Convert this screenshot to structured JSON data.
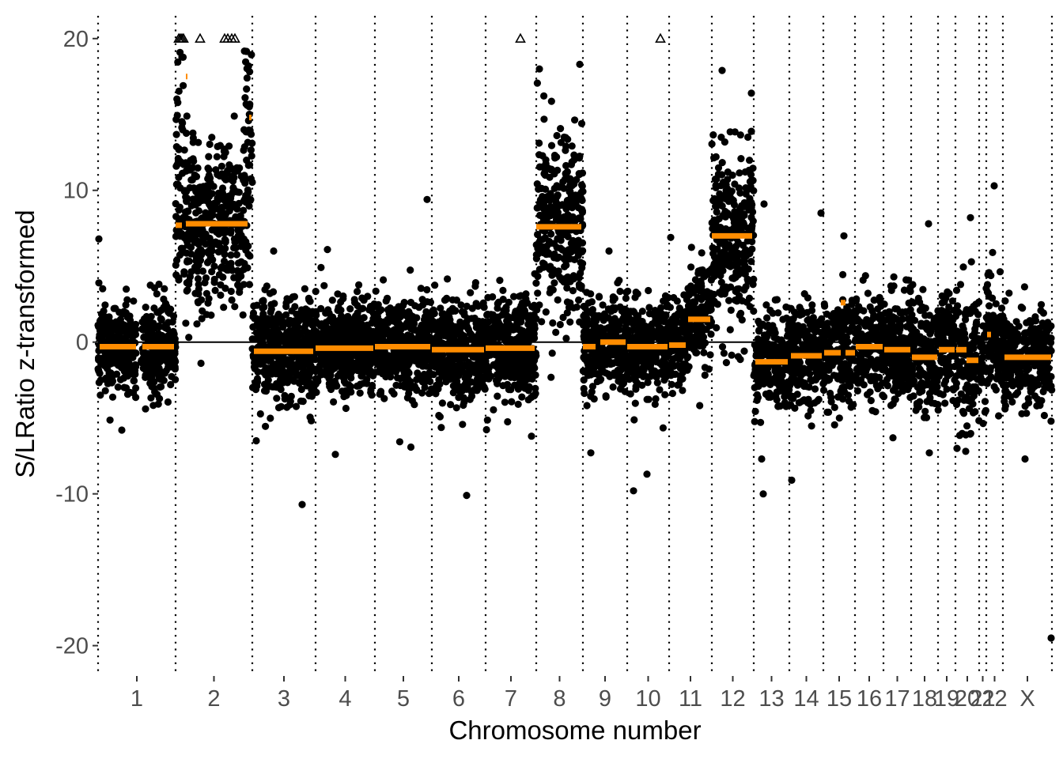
{
  "chart_data": {
    "type": "scatter",
    "title": "",
    "xlabel": "Chromosome number",
    "ylabel": "S/LRatio z-transformed",
    "ylim": [
      -22,
      21.5
    ],
    "yticks": [
      -20,
      -10,
      0,
      10,
      20
    ],
    "ytick_labels": [
      "-20",
      "-10",
      "0",
      "10",
      "20"
    ],
    "reference_line_y": 0,
    "clip_value": 20,
    "chromosomes": [
      {
        "label": "1",
        "start": 0,
        "end": 98
      },
      {
        "label": "2",
        "start": 98,
        "end": 195
      },
      {
        "label": "3",
        "start": 195,
        "end": 275
      },
      {
        "label": "4",
        "start": 275,
        "end": 350
      },
      {
        "label": "5",
        "start": 350,
        "end": 422
      },
      {
        "label": "6",
        "start": 422,
        "end": 490
      },
      {
        "label": "7",
        "start": 490,
        "end": 554
      },
      {
        "label": "8",
        "start": 554,
        "end": 613
      },
      {
        "label": "9",
        "start": 613,
        "end": 669
      },
      {
        "label": "10",
        "start": 669,
        "end": 722
      },
      {
        "label": "11",
        "start": 722,
        "end": 776
      },
      {
        "label": "12",
        "start": 776,
        "end": 829
      },
      {
        "label": "13",
        "start": 829,
        "end": 874
      },
      {
        "label": "14",
        "start": 874,
        "end": 917
      },
      {
        "label": "15",
        "start": 917,
        "end": 957
      },
      {
        "label": "16",
        "start": 957,
        "end": 993
      },
      {
        "label": "17",
        "start": 993,
        "end": 1028
      },
      {
        "label": "18",
        "start": 1028,
        "end": 1062
      },
      {
        "label": "19",
        "start": 1062,
        "end": 1084
      },
      {
        "label": "20",
        "start": 1084,
        "end": 1114
      },
      {
        "label": "21",
        "start": 1114,
        "end": 1123
      },
      {
        "label": "22",
        "start": 1123,
        "end": 1144
      },
      {
        "label": "X",
        "start": 1144,
        "end": 1206
      }
    ],
    "segments": [
      {
        "x0": 2,
        "x1": 48,
        "y": -0.3
      },
      {
        "x0": 56,
        "x1": 96,
        "y": -0.3
      },
      {
        "x0": 98,
        "x1": 106,
        "y": 7.7
      },
      {
        "x0": 111,
        "x1": 113,
        "y": 17.5
      },
      {
        "x0": 111,
        "x1": 189,
        "y": 7.8
      },
      {
        "x0": 191,
        "x1": 194,
        "y": 14.8
      },
      {
        "x0": 197,
        "x1": 272,
        "y": -0.6
      },
      {
        "x0": 275,
        "x1": 348,
        "y": -0.4
      },
      {
        "x0": 350,
        "x1": 420,
        "y": -0.3
      },
      {
        "x0": 422,
        "x1": 488,
        "y": -0.5
      },
      {
        "x0": 490,
        "x1": 552,
        "y": -0.4
      },
      {
        "x0": 554,
        "x1": 611,
        "y": 7.6
      },
      {
        "x0": 613,
        "x1": 629,
        "y": -0.3
      },
      {
        "x0": 635,
        "x1": 667,
        "y": 0.0
      },
      {
        "x0": 669,
        "x1": 720,
        "y": -0.3
      },
      {
        "x0": 722,
        "x1": 743,
        "y": -0.2
      },
      {
        "x0": 746,
        "x1": 774,
        "y": 1.5
      },
      {
        "x0": 776,
        "x1": 827,
        "y": 7.0
      },
      {
        "x0": 831,
        "x1": 872,
        "y": -1.3
      },
      {
        "x0": 876,
        "x1": 915,
        "y": -0.9
      },
      {
        "x0": 918,
        "x1": 939,
        "y": -0.7
      },
      {
        "x0": 939,
        "x1": 945,
        "y": 2.6
      },
      {
        "x0": 945,
        "x1": 957,
        "y": -0.7
      },
      {
        "x0": 958,
        "x1": 992,
        "y": -0.3
      },
      {
        "x0": 994,
        "x1": 1027,
        "y": -0.5
      },
      {
        "x0": 1029,
        "x1": 1061,
        "y": -1.0
      },
      {
        "x0": 1063,
        "x1": 1083,
        "y": -0.5
      },
      {
        "x0": 1085,
        "x1": 1098,
        "y": -0.5
      },
      {
        "x0": 1098,
        "x1": 1113,
        "y": -1.2
      },
      {
        "x0": 1124,
        "x1": 1129,
        "y": 0.5
      },
      {
        "x0": 1146,
        "x1": 1205,
        "y": -1.0
      }
    ],
    "clipped_points_x": [
      102,
      104,
      106,
      108,
      129,
      160,
      164,
      169,
      173,
      534,
      711
    ],
    "outlier_points": [
      {
        "x": 1,
        "y": 6.8
      },
      {
        "x": 1,
        "y": 3.9
      },
      {
        "x": 30,
        "y": -5.8
      },
      {
        "x": 60,
        "y": -4.4
      },
      {
        "x": 102,
        "y": 4.1
      },
      {
        "x": 125,
        "y": 1.2
      },
      {
        "x": 200,
        "y": -6.5
      },
      {
        "x": 222,
        "y": 6.0
      },
      {
        "x": 258,
        "y": -10.7
      },
      {
        "x": 290,
        "y": 6.1
      },
      {
        "x": 300,
        "y": -7.4
      },
      {
        "x": 416,
        "y": 9.4
      },
      {
        "x": 466,
        "y": -10.1
      },
      {
        "x": 548,
        "y": -6.2
      },
      {
        "x": 558,
        "y": 18.0
      },
      {
        "x": 609,
        "y": 18.3
      },
      {
        "x": 623,
        "y": -7.3
      },
      {
        "x": 646,
        "y": 6.0
      },
      {
        "x": 677,
        "y": -9.8
      },
      {
        "x": 694,
        "y": -8.7
      },
      {
        "x": 724,
        "y": 6.9
      },
      {
        "x": 789,
        "y": 17.9
      },
      {
        "x": 826,
        "y": 16.4
      },
      {
        "x": 839,
        "y": -7.7
      },
      {
        "x": 841,
        "y": -10.0
      },
      {
        "x": 842,
        "y": 9.1
      },
      {
        "x": 877,
        "y": -9.1
      },
      {
        "x": 914,
        "y": 8.5
      },
      {
        "x": 943,
        "y": 7.0
      },
      {
        "x": 1050,
        "y": 7.8
      },
      {
        "x": 1051,
        "y": -7.3
      },
      {
        "x": 1086,
        "y": -7.0
      },
      {
        "x": 1097,
        "y": -7.2
      },
      {
        "x": 1103,
        "y": 8.2
      },
      {
        "x": 1133,
        "y": 10.3
      },
      {
        "x": 1131,
        "y": 5.9
      },
      {
        "x": 1172,
        "y": -7.7
      },
      {
        "x": 1205,
        "y": -19.5
      }
    ],
    "bins": [
      {
        "x0": 0,
        "x1": 48,
        "n": 260,
        "mean": -0.3,
        "sd": 1.5
      },
      {
        "x0": 54,
        "x1": 98,
        "n": 220,
        "mean": -0.3,
        "sd": 1.5
      },
      {
        "x0": 98,
        "x1": 110,
        "n": 60,
        "mean": 11.0,
        "sd": 4.0
      },
      {
        "x0": 110,
        "x1": 185,
        "n": 380,
        "mean": 7.8,
        "sd": 2.8
      },
      {
        "x0": 185,
        "x1": 195,
        "n": 55,
        "mean": 11.5,
        "sd": 4.0
      },
      {
        "x0": 195,
        "x1": 275,
        "n": 480,
        "mean": -0.6,
        "sd": 1.6
      },
      {
        "x0": 275,
        "x1": 350,
        "n": 440,
        "mean": -0.4,
        "sd": 1.6
      },
      {
        "x0": 350,
        "x1": 422,
        "n": 420,
        "mean": -0.3,
        "sd": 1.6
      },
      {
        "x0": 422,
        "x1": 490,
        "n": 400,
        "mean": -0.5,
        "sd": 1.6
      },
      {
        "x0": 490,
        "x1": 554,
        "n": 380,
        "mean": -0.4,
        "sd": 1.6
      },
      {
        "x0": 554,
        "x1": 613,
        "n": 320,
        "mean": 7.6,
        "sd": 3.0
      },
      {
        "x0": 613,
        "x1": 669,
        "n": 300,
        "mean": 0.0,
        "sd": 1.6
      },
      {
        "x0": 669,
        "x1": 722,
        "n": 280,
        "mean": -0.3,
        "sd": 1.6
      },
      {
        "x0": 722,
        "x1": 745,
        "n": 110,
        "mean": -0.2,
        "sd": 1.5
      },
      {
        "x0": 745,
        "x1": 776,
        "n": 150,
        "mean": 2.0,
        "sd": 1.8
      },
      {
        "x0": 776,
        "x1": 829,
        "n": 300,
        "mean": 7.0,
        "sd": 2.8
      },
      {
        "x0": 829,
        "x1": 874,
        "n": 230,
        "mean": -1.3,
        "sd": 1.6
      },
      {
        "x0": 874,
        "x1": 917,
        "n": 220,
        "mean": -0.9,
        "sd": 1.7
      },
      {
        "x0": 917,
        "x1": 957,
        "n": 190,
        "mean": -0.6,
        "sd": 1.8
      },
      {
        "x0": 957,
        "x1": 993,
        "n": 180,
        "mean": -0.3,
        "sd": 1.7
      },
      {
        "x0": 993,
        "x1": 1028,
        "n": 180,
        "mean": -0.5,
        "sd": 1.8
      },
      {
        "x0": 1028,
        "x1": 1062,
        "n": 160,
        "mean": -1.0,
        "sd": 1.8
      },
      {
        "x0": 1062,
        "x1": 1084,
        "n": 100,
        "mean": -0.5,
        "sd": 1.8
      },
      {
        "x0": 1084,
        "x1": 1114,
        "n": 140,
        "mean": -1.0,
        "sd": 1.9
      },
      {
        "x0": 1114,
        "x1": 1123,
        "n": 40,
        "mean": -1.2,
        "sd": 1.8
      },
      {
        "x0": 1123,
        "x1": 1144,
        "n": 100,
        "mean": 0.5,
        "sd": 1.8
      },
      {
        "x0": 1144,
        "x1": 1206,
        "n": 300,
        "mean": -1.0,
        "sd": 1.6
      }
    ],
    "colors": {
      "point": "#000000",
      "segment": "#ff8c00",
      "boundary": "#000000",
      "zero_line": "#000000",
      "tick_mark": "#333333",
      "tick_label": "#4d4d4d"
    }
  }
}
